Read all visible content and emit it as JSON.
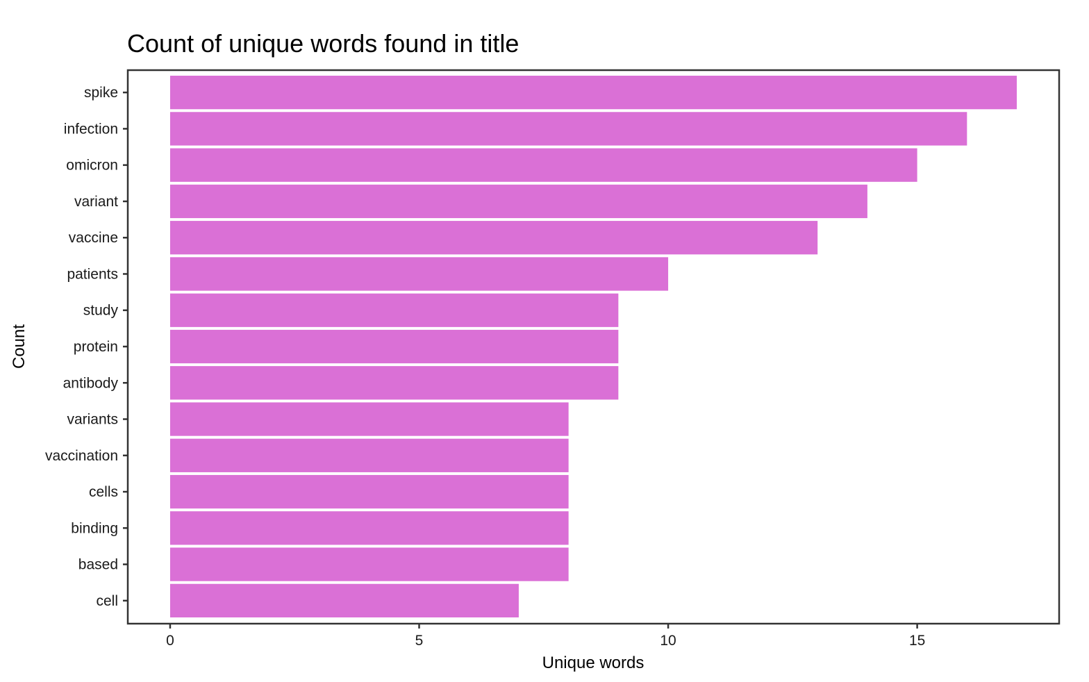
{
  "chart_data": {
    "type": "bar",
    "orientation": "horizontal",
    "title": "Count of unique words found in title",
    "xlabel": "Unique words",
    "ylabel": "Count",
    "categories": [
      "spike",
      "infection",
      "omicron",
      "variant",
      "vaccine",
      "patients",
      "study",
      "protein",
      "antibody",
      "variants",
      "vaccination",
      "cells",
      "binding",
      "based",
      "cell"
    ],
    "values": [
      17,
      16,
      15,
      14,
      13,
      10,
      9,
      9,
      9,
      8,
      8,
      8,
      8,
      8,
      7
    ],
    "xlim": [
      -0.85,
      17.85
    ],
    "x_ticks": [
      0,
      5,
      10,
      15
    ],
    "x_tick_labels": [
      "0",
      "5",
      "10",
      "15"
    ],
    "bar_color": "#DA70D6",
    "grid": false,
    "legend": "none",
    "background": "#ffffff",
    "panel_border_color": "#333333"
  }
}
